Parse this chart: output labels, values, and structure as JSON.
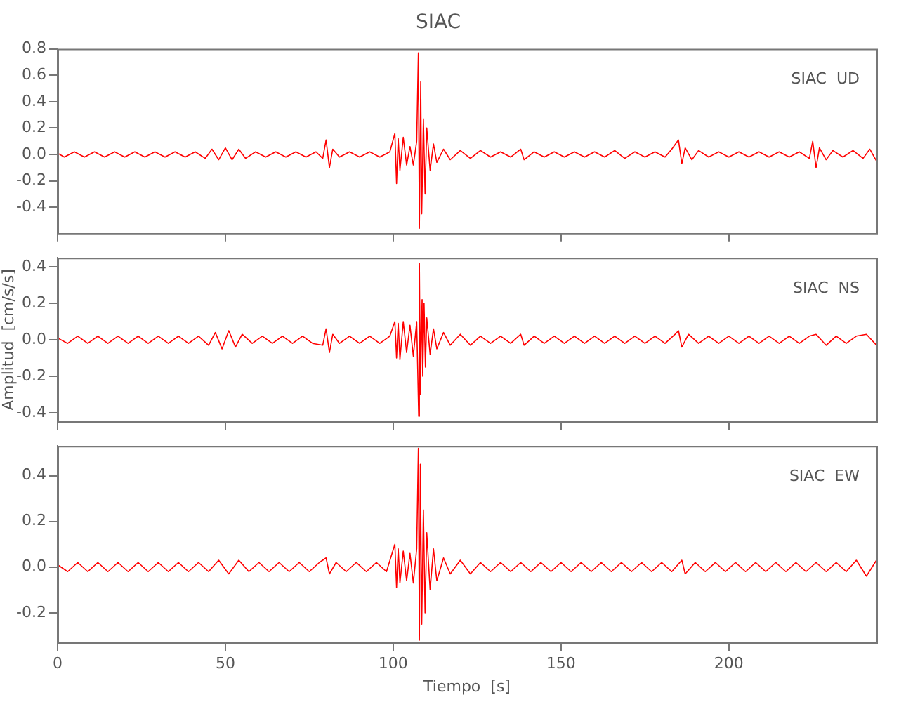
{
  "chart_data": [
    {
      "type": "line",
      "title": "SIAC",
      "annotations": [
        "SIAC  UD"
      ],
      "tick_labels": "y",
      "grid": false,
      "xlim": [
        0,
        244
      ],
      "xticks": [
        0,
        50,
        100,
        150,
        200
      ],
      "ylim": [
        -0.6,
        0.8
      ],
      "yticks": [
        {
          "value": -0.4,
          "label": "-0.4"
        },
        {
          "value": -0.2,
          "label": "-0.2"
        },
        {
          "value": 0,
          "label": "0.0"
        },
        {
          "value": 0.2,
          "label": "0.2"
        },
        {
          "value": 0.4,
          "label": "0.4"
        },
        {
          "value": 0.6,
          "label": "0.6"
        },
        {
          "value": 0.8,
          "label": "0.8"
        }
      ],
      "x": [
        0,
        2,
        5,
        8,
        11,
        14,
        17,
        20,
        23,
        26,
        29,
        32,
        35,
        38,
        41,
        44,
        46,
        48,
        50,
        52,
        54,
        56,
        59,
        62,
        65,
        68,
        71,
        74,
        77,
        79,
        80,
        81,
        82,
        84,
        87,
        90,
        93,
        96,
        99,
        100.5,
        101,
        101.5,
        102,
        103,
        104,
        105,
        106,
        107,
        107.5,
        107.8,
        108.2,
        108.5,
        109,
        109.5,
        110,
        111,
        112,
        113,
        115,
        117,
        120,
        123,
        126,
        129,
        132,
        135,
        138,
        139,
        142,
        145,
        148,
        151,
        154,
        157,
        160,
        163,
        166,
        169,
        172,
        175,
        178,
        181,
        183,
        185,
        186,
        187,
        189,
        191,
        194,
        197,
        200,
        203,
        206,
        209,
        212,
        215,
        218,
        221,
        224,
        225,
        226,
        227,
        229,
        231,
        234,
        237,
        240,
        242,
        244
      ],
      "series": [
        {
          "color": "#ff0000",
          "values": [
            0.01,
            -0.02,
            0.02,
            -0.02,
            0.02,
            -0.02,
            0.02,
            -0.02,
            0.02,
            -0.02,
            0.02,
            -0.02,
            0.02,
            -0.02,
            0.02,
            -0.03,
            0.04,
            -0.04,
            0.05,
            -0.04,
            0.04,
            -0.03,
            0.02,
            -0.02,
            0.02,
            -0.02,
            0.02,
            -0.02,
            0.02,
            -0.03,
            0.11,
            -0.1,
            0.04,
            -0.02,
            0.02,
            -0.02,
            0.02,
            -0.02,
            0.02,
            0.16,
            -0.22,
            0.12,
            -0.12,
            0.13,
            -0.08,
            0.06,
            -0.08,
            0.1,
            0.77,
            -0.56,
            0.55,
            -0.45,
            0.27,
            -0.3,
            0.2,
            -0.12,
            0.08,
            -0.06,
            0.04,
            -0.04,
            0.03,
            -0.03,
            0.03,
            -0.02,
            0.02,
            -0.02,
            0.04,
            -0.04,
            0.02,
            -0.02,
            0.02,
            -0.02,
            0.02,
            -0.02,
            0.02,
            -0.02,
            0.03,
            -0.03,
            0.02,
            -0.02,
            0.02,
            -0.02,
            0.04,
            0.11,
            -0.07,
            0.05,
            -0.04,
            0.03,
            -0.02,
            0.02,
            -0.02,
            0.02,
            -0.02,
            0.02,
            -0.02,
            0.02,
            -0.02,
            0.02,
            -0.03,
            0.1,
            -0.1,
            0.05,
            -0.04,
            0.03,
            -0.02,
            0.03,
            -0.03,
            0.04,
            -0.05
          ]
        }
      ]
    },
    {
      "type": "line",
      "ylabel": "Amplitud  [cm/s/s]",
      "annotations": [
        "SIAC  NS"
      ],
      "tick_labels": "y",
      "grid": false,
      "xlim": [
        0,
        244
      ],
      "xticks": [
        0,
        50,
        100,
        150,
        200
      ],
      "ylim": [
        -0.45,
        0.45
      ],
      "yticks": [
        {
          "value": -0.4,
          "label": "-0.4"
        },
        {
          "value": -0.2,
          "label": "-0.2"
        },
        {
          "value": 0,
          "label": "0.0"
        },
        {
          "value": 0.2,
          "label": "0.2"
        },
        {
          "value": 0.4,
          "label": "0.4"
        }
      ],
      "x": [
        0,
        3,
        6,
        9,
        12,
        15,
        18,
        21,
        24,
        27,
        30,
        33,
        36,
        39,
        42,
        45,
        47,
        49,
        51,
        53,
        55,
        58,
        61,
        64,
        67,
        70,
        73,
        76,
        79,
        80,
        81,
        82,
        84,
        87,
        90,
        93,
        96,
        99,
        100.5,
        101,
        101.5,
        102,
        103,
        104,
        105,
        106,
        107,
        107.6,
        107.8,
        108.1,
        108.4,
        108.8,
        109.2,
        109.6,
        110,
        111,
        112,
        113,
        115,
        117,
        120,
        123,
        126,
        129,
        132,
        135,
        138,
        139,
        142,
        145,
        148,
        151,
        154,
        157,
        160,
        163,
        166,
        169,
        172,
        175,
        178,
        181,
        184,
        185,
        186,
        188,
        191,
        194,
        197,
        200,
        203,
        206,
        209,
        212,
        215,
        218,
        221,
        224,
        226,
        229,
        232,
        235,
        238,
        241,
        244
      ],
      "series": [
        {
          "color": "#ff0000",
          "values": [
            0.01,
            -0.02,
            0.02,
            -0.02,
            0.02,
            -0.02,
            0.02,
            -0.02,
            0.02,
            -0.02,
            0.02,
            -0.02,
            0.02,
            -0.02,
            0.02,
            -0.03,
            0.04,
            -0.05,
            0.05,
            -0.04,
            0.03,
            -0.02,
            0.02,
            -0.02,
            0.02,
            -0.02,
            0.02,
            -0.02,
            -0.03,
            0.06,
            -0.07,
            0.03,
            -0.02,
            0.02,
            -0.02,
            0.02,
            -0.02,
            0.02,
            0.1,
            -0.1,
            0.09,
            -0.11,
            0.1,
            -0.07,
            0.08,
            -0.09,
            0.1,
            -0.42,
            0.42,
            -0.3,
            0.22,
            -0.2,
            0.2,
            -0.15,
            0.12,
            -0.08,
            0.06,
            -0.05,
            0.04,
            -0.03,
            0.03,
            -0.03,
            0.02,
            -0.02,
            0.02,
            -0.02,
            0.03,
            -0.03,
            0.02,
            -0.02,
            0.02,
            -0.02,
            0.02,
            -0.02,
            0.02,
            -0.02,
            0.02,
            -0.02,
            0.02,
            -0.02,
            0.02,
            -0.02,
            0.03,
            0.05,
            -0.04,
            0.03,
            -0.02,
            0.02,
            -0.02,
            0.02,
            -0.02,
            0.02,
            -0.02,
            0.02,
            -0.02,
            0.02,
            -0.02,
            0.02,
            0.03,
            -0.03,
            0.02,
            -0.02,
            0.02,
            0.03,
            -0.03
          ]
        }
      ]
    },
    {
      "type": "line",
      "xlabel": "Tiempo  [s]",
      "annotations": [
        "SIAC  EW"
      ],
      "grid": false,
      "xlim": [
        0,
        244
      ],
      "xticks": [
        0,
        50,
        100,
        150,
        200
      ],
      "ylim": [
        -0.33,
        0.53
      ],
      "yticks": [
        {
          "value": -0.2,
          "label": "-0.2"
        },
        {
          "value": 0,
          "label": "0.0"
        },
        {
          "value": 0.2,
          "label": "0.2"
        },
        {
          "value": 0.4,
          "label": "0.4"
        }
      ],
      "x": [
        0,
        3,
        6,
        9,
        12,
        15,
        18,
        21,
        24,
        27,
        30,
        33,
        36,
        39,
        42,
        45,
        48,
        51,
        54,
        57,
        60,
        63,
        66,
        69,
        72,
        75,
        78,
        80,
        81,
        83,
        86,
        89,
        92,
        95,
        98,
        100.5,
        101,
        101.5,
        102,
        103,
        104,
        105,
        106,
        107,
        107.5,
        107.8,
        108.1,
        108.5,
        109,
        109.5,
        110,
        111,
        112,
        113,
        115,
        117,
        120,
        123,
        126,
        129,
        132,
        135,
        138,
        141,
        144,
        147,
        150,
        153,
        156,
        159,
        162,
        165,
        168,
        171,
        174,
        177,
        180,
        183,
        186,
        187,
        190,
        193,
        196,
        199,
        202,
        205,
        208,
        211,
        214,
        217,
        220,
        223,
        226,
        229,
        232,
        235,
        238,
        241,
        244
      ],
      "series": [
        {
          "color": "#ff0000",
          "values": [
            0.01,
            -0.02,
            0.02,
            -0.02,
            0.02,
            -0.02,
            0.02,
            -0.02,
            0.02,
            -0.02,
            0.02,
            -0.02,
            0.02,
            -0.02,
            0.02,
            -0.02,
            0.03,
            -0.03,
            0.03,
            -0.02,
            0.02,
            -0.02,
            0.02,
            -0.02,
            0.02,
            -0.02,
            0.02,
            0.04,
            -0.03,
            0.02,
            -0.02,
            0.02,
            -0.02,
            0.02,
            -0.02,
            0.1,
            -0.09,
            0.08,
            -0.07,
            0.07,
            -0.06,
            0.06,
            -0.07,
            0.08,
            0.52,
            -0.32,
            0.45,
            -0.25,
            0.25,
            -0.2,
            0.15,
            -0.1,
            0.08,
            -0.06,
            0.04,
            -0.03,
            0.03,
            -0.03,
            0.02,
            -0.02,
            0.02,
            -0.02,
            0.02,
            -0.02,
            0.02,
            -0.02,
            0.02,
            -0.02,
            0.02,
            -0.02,
            0.02,
            -0.02,
            0.02,
            -0.02,
            0.02,
            -0.02,
            0.02,
            -0.02,
            0.03,
            -0.03,
            0.02,
            -0.02,
            0.02,
            -0.02,
            0.02,
            -0.02,
            0.02,
            -0.02,
            0.02,
            -0.02,
            0.02,
            -0.02,
            0.02,
            -0.02,
            0.02,
            -0.02,
            0.03,
            -0.04,
            0.03
          ]
        }
      ]
    }
  ]
}
